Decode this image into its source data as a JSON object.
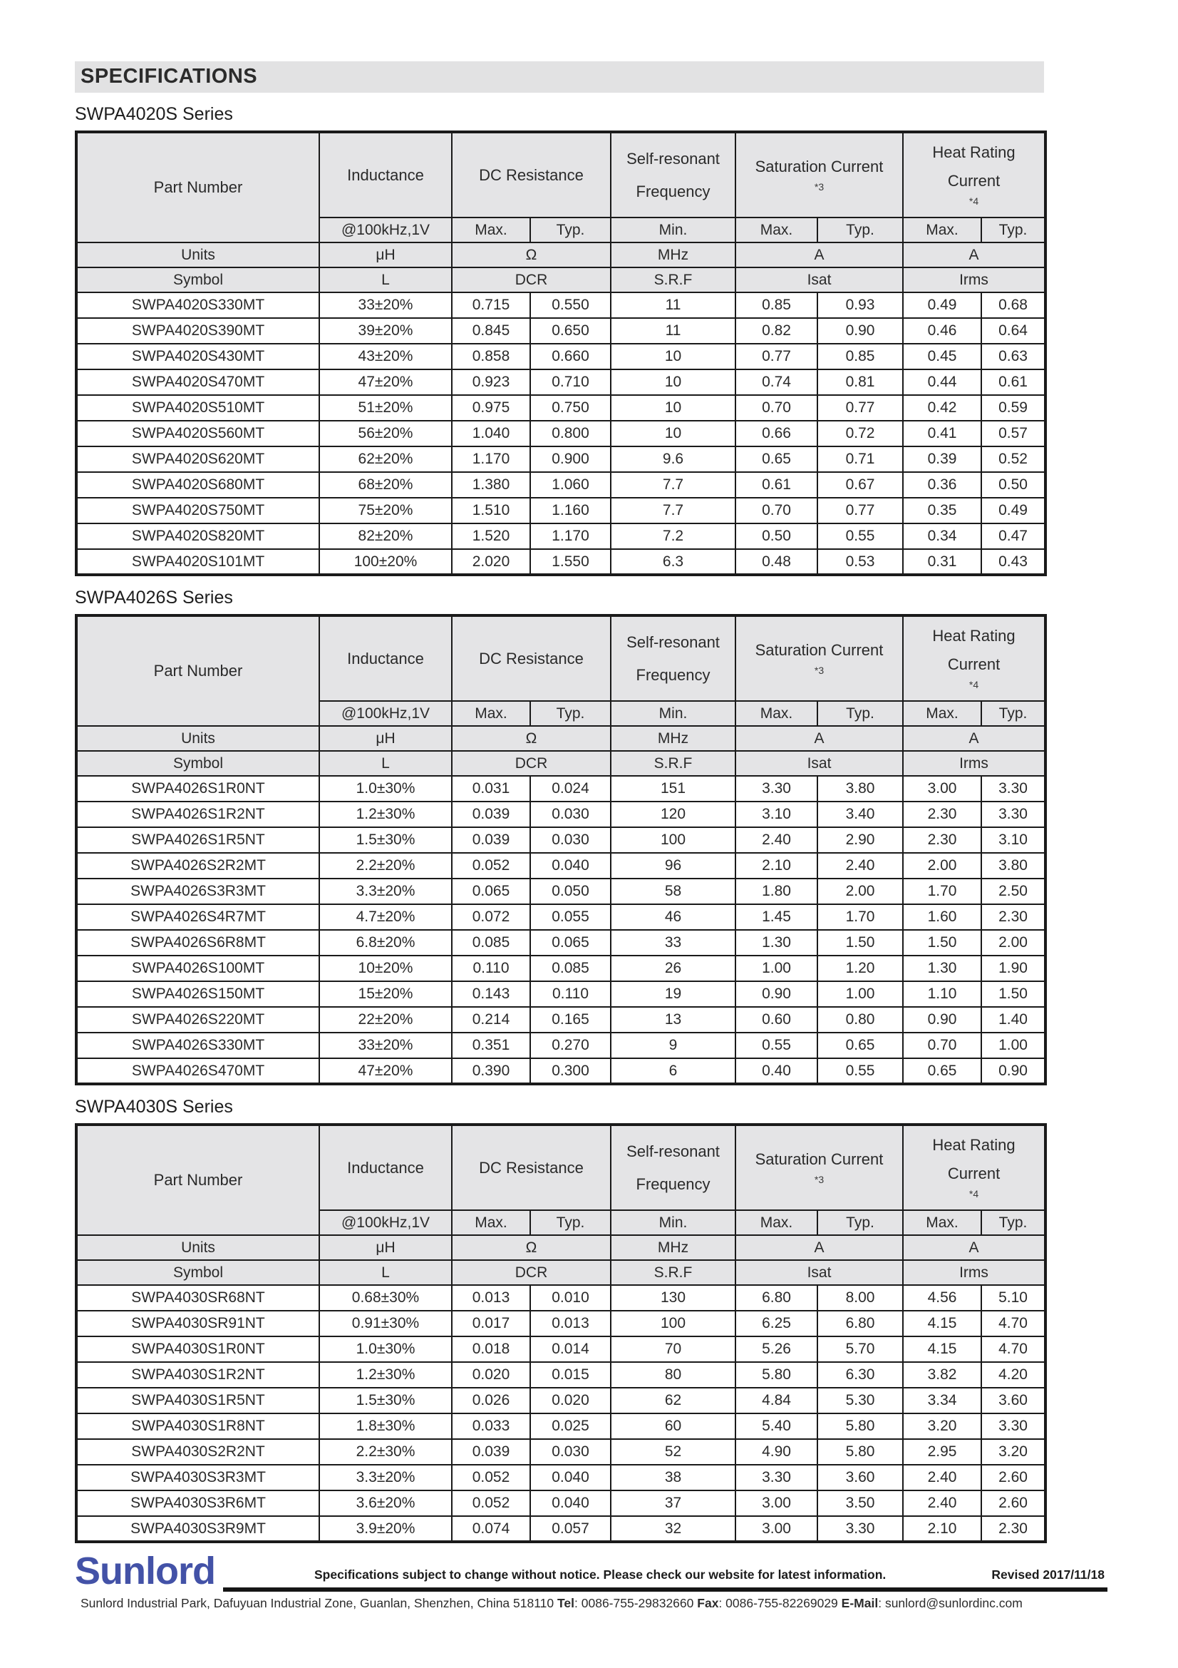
{
  "page": {
    "title": "SPECIFICATIONS"
  },
  "table_header": {
    "part_number": "Part Number",
    "inductance": "Inductance",
    "dc_resistance": "DC Resistance",
    "srf_line1": "Self-resonant",
    "srf_line2": "Frequency",
    "saturation": "Saturation Current",
    "saturation_note": "*3",
    "heat_line1": "Heat Rating",
    "heat_line2": "Current",
    "heat_note": "*4",
    "condition": "@100kHz,1V",
    "max": "Max.",
    "typ": "Typ.",
    "min": "Min.",
    "units_label": "Units",
    "symbol_label": "Symbol",
    "unit_uh": "μH",
    "unit_ohm": "Ω",
    "unit_mhz": "MHz",
    "unit_a": "A",
    "sym_l": "L",
    "sym_dcr": "DCR",
    "sym_srf": "S.R.F",
    "sym_isat": "Isat",
    "sym_irms": "Irms"
  },
  "series": [
    {
      "title": "SWPA4020S Series",
      "rows": [
        [
          "SWPA4020S330MT",
          "33±20%",
          "0.715",
          "0.550",
          "11",
          "0.85",
          "0.93",
          "0.49",
          "0.68"
        ],
        [
          "SWPA4020S390MT",
          "39±20%",
          "0.845",
          "0.650",
          "11",
          "0.82",
          "0.90",
          "0.46",
          "0.64"
        ],
        [
          "SWPA4020S430MT",
          "43±20%",
          "0.858",
          "0.660",
          "10",
          "0.77",
          "0.85",
          "0.45",
          "0.63"
        ],
        [
          "SWPA4020S470MT",
          "47±20%",
          "0.923",
          "0.710",
          "10",
          "0.74",
          "0.81",
          "0.44",
          "0.61"
        ],
        [
          "SWPA4020S510MT",
          "51±20%",
          "0.975",
          "0.750",
          "10",
          "0.70",
          "0.77",
          "0.42",
          "0.59"
        ],
        [
          "SWPA4020S560MT",
          "56±20%",
          "1.040",
          "0.800",
          "10",
          "0.66",
          "0.72",
          "0.41",
          "0.57"
        ],
        [
          "SWPA4020S620MT",
          "62±20%",
          "1.170",
          "0.900",
          "9.6",
          "0.65",
          "0.71",
          "0.39",
          "0.52"
        ],
        [
          "SWPA4020S680MT",
          "68±20%",
          "1.380",
          "1.060",
          "7.7",
          "0.61",
          "0.67",
          "0.36",
          "0.50"
        ],
        [
          "SWPA4020S750MT",
          "75±20%",
          "1.510",
          "1.160",
          "7.7",
          "0.70",
          "0.77",
          "0.35",
          "0.49"
        ],
        [
          "SWPA4020S820MT",
          "82±20%",
          "1.520",
          "1.170",
          "7.2",
          "0.50",
          "0.55",
          "0.34",
          "0.47"
        ],
        [
          "SWPA4020S101MT",
          "100±20%",
          "2.020",
          "1.550",
          "6.3",
          "0.48",
          "0.53",
          "0.31",
          "0.43"
        ]
      ]
    },
    {
      "title": "SWPA4026S Series",
      "rows": [
        [
          "SWPA4026S1R0NT",
          "1.0±30%",
          "0.031",
          "0.024",
          "151",
          "3.30",
          "3.80",
          "3.00",
          "3.30"
        ],
        [
          "SWPA4026S1R2NT",
          "1.2±30%",
          "0.039",
          "0.030",
          "120",
          "3.10",
          "3.40",
          "2.30",
          "3.30"
        ],
        [
          "SWPA4026S1R5NT",
          "1.5±30%",
          "0.039",
          "0.030",
          "100",
          "2.40",
          "2.90",
          "2.30",
          "3.10"
        ],
        [
          "SWPA4026S2R2MT",
          "2.2±20%",
          "0.052",
          "0.040",
          "96",
          "2.10",
          "2.40",
          "2.00",
          "3.80"
        ],
        [
          "SWPA4026S3R3MT",
          "3.3±20%",
          "0.065",
          "0.050",
          "58",
          "1.80",
          "2.00",
          "1.70",
          "2.50"
        ],
        [
          "SWPA4026S4R7MT",
          "4.7±20%",
          "0.072",
          "0.055",
          "46",
          "1.45",
          "1.70",
          "1.60",
          "2.30"
        ],
        [
          "SWPA4026S6R8MT",
          "6.8±20%",
          "0.085",
          "0.065",
          "33",
          "1.30",
          "1.50",
          "1.50",
          "2.00"
        ],
        [
          "SWPA4026S100MT",
          "10±20%",
          "0.110",
          "0.085",
          "26",
          "1.00",
          "1.20",
          "1.30",
          "1.90"
        ],
        [
          "SWPA4026S150MT",
          "15±20%",
          "0.143",
          "0.110",
          "19",
          "0.90",
          "1.00",
          "1.10",
          "1.50"
        ],
        [
          "SWPA4026S220MT",
          "22±20%",
          "0.214",
          "0.165",
          "13",
          "0.60",
          "0.80",
          "0.90",
          "1.40"
        ],
        [
          "SWPA4026S330MT",
          "33±20%",
          "0.351",
          "0.270",
          "9",
          "0.55",
          "0.65",
          "0.70",
          "1.00"
        ],
        [
          "SWPA4026S470MT",
          "47±20%",
          "0.390",
          "0.300",
          "6",
          "0.40",
          "0.55",
          "0.65",
          "0.90"
        ]
      ]
    },
    {
      "title": "SWPA4030S Series",
      "rows": [
        [
          "SWPA4030SR68NT",
          "0.68±30%",
          "0.013",
          "0.010",
          "130",
          "6.80",
          "8.00",
          "4.56",
          "5.10"
        ],
        [
          "SWPA4030SR91NT",
          "0.91±30%",
          "0.017",
          "0.013",
          "100",
          "6.25",
          "6.80",
          "4.15",
          "4.70"
        ],
        [
          "SWPA4030S1R0NT",
          "1.0±30%",
          "0.018",
          "0.014",
          "70",
          "5.26",
          "5.70",
          "4.15",
          "4.70"
        ],
        [
          "SWPA4030S1R2NT",
          "1.2±30%",
          "0.020",
          "0.015",
          "80",
          "5.80",
          "6.30",
          "3.82",
          "4.20"
        ],
        [
          "SWPA4030S1R5NT",
          "1.5±30%",
          "0.026",
          "0.020",
          "62",
          "4.84",
          "5.30",
          "3.34",
          "3.60"
        ],
        [
          "SWPA4030S1R8NT",
          "1.8±30%",
          "0.033",
          "0.025",
          "60",
          "5.40",
          "5.80",
          "3.20",
          "3.30"
        ],
        [
          "SWPA4030S2R2NT",
          "2.2±30%",
          "0.039",
          "0.030",
          "52",
          "4.90",
          "5.80",
          "2.95",
          "3.20"
        ],
        [
          "SWPA4030S3R3MT",
          "3.3±20%",
          "0.052",
          "0.040",
          "38",
          "3.30",
          "3.60",
          "2.40",
          "2.60"
        ],
        [
          "SWPA4030S3R6MT",
          "3.6±20%",
          "0.052",
          "0.040",
          "37",
          "3.00",
          "3.50",
          "2.40",
          "2.60"
        ],
        [
          "SWPA4030S3R9MT",
          "3.9±20%",
          "0.074",
          "0.057",
          "32",
          "3.00",
          "3.30",
          "2.10",
          "2.30"
        ]
      ]
    }
  ],
  "footer": {
    "logo": "Sunlord",
    "notice": "Specifications subject to change without notice. Please check our website for latest information.",
    "revised": "Revised 2017/11/18",
    "address": "Sunlord Industrial Park, Dafuyuan Industrial Zone, Guanlan, Shenzhen, China 518110",
    "tel_label": "Tel",
    "tel_value": ": 0086-755-29832660",
    "fax_label": "Fax",
    "fax_value": ": 0086-755-82269029",
    "email_label": "E-Mail",
    "email_value": ": sunlord@sunlordinc.com"
  },
  "colors": {
    "logo_blue": "#4352a7",
    "header_gray": "#e4e4e6",
    "border_black": "#1a1a1a"
  }
}
